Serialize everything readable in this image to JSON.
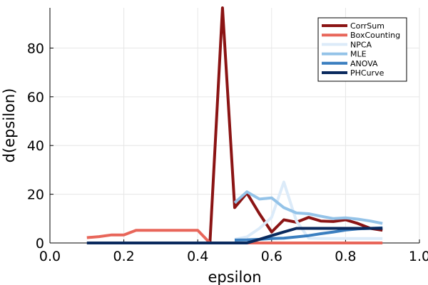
{
  "chart_data": {
    "type": "line",
    "title": "",
    "xlabel": "epsilon",
    "ylabel": "d(epsilon)",
    "xlim": [
      0.0,
      1.0
    ],
    "ylim": [
      0,
      96.5
    ],
    "xticks": [
      0.0,
      0.2,
      0.4,
      0.6,
      0.8,
      1.0
    ],
    "xtick_labels": [
      "0.0",
      "0.2",
      "0.4",
      "0.6",
      "0.8",
      "1.0"
    ],
    "yticks": [
      0,
      20,
      40,
      60,
      80
    ],
    "ytick_labels": [
      "0",
      "20",
      "40",
      "60",
      "80"
    ],
    "grid": true,
    "legend_position": "top-right",
    "series": [
      {
        "name": "CorrSum",
        "color": "#8b1414",
        "x": [
          0.433,
          0.467,
          0.5,
          0.533,
          0.567,
          0.6,
          0.633,
          0.667,
          0.7,
          0.733,
          0.767,
          0.8,
          0.833,
          0.867,
          0.9
        ],
        "y": [
          0,
          96.5,
          14.5,
          20.5,
          12,
          4.5,
          9.5,
          8.5,
          10.5,
          9,
          8.8,
          9.5,
          8,
          6,
          5.2
        ]
      },
      {
        "name": "BoxCounting",
        "color": "#e8665a",
        "x": [
          0.1,
          0.133,
          0.167,
          0.2,
          0.233,
          0.267,
          0.3,
          0.333,
          0.367,
          0.4,
          0.433,
          0.467,
          0.5,
          0.6,
          0.7,
          0.8,
          0.9
        ],
        "y": [
          2.2,
          2.6,
          3.3,
          3.3,
          5.2,
          5.2,
          5.2,
          5.2,
          5.2,
          5.2,
          0,
          0,
          0,
          0,
          0,
          0,
          0
        ]
      },
      {
        "name": "NPCA",
        "color": "#dcebf9",
        "x": [
          0.5,
          0.533,
          0.567,
          0.6,
          0.633,
          0.667,
          0.7,
          0.733,
          0.767,
          0.8,
          0.833,
          0.867,
          0.9
        ],
        "y": [
          1.5,
          2.5,
          6,
          10.5,
          25,
          9,
          2,
          1.8,
          1.8,
          1.8,
          1.8,
          1.8,
          1.8
        ]
      },
      {
        "name": "MLE",
        "color": "#94c3e8",
        "x": [
          0.5,
          0.533,
          0.567,
          0.6,
          0.633,
          0.667,
          0.7,
          0.733,
          0.767,
          0.8,
          0.833,
          0.867,
          0.9
        ],
        "y": [
          16.5,
          21,
          18,
          18.5,
          14.5,
          12.3,
          12,
          11,
          10,
          10.3,
          9.8,
          9,
          8
        ]
      },
      {
        "name": "ANOVA",
        "color": "#3b7fc0",
        "x": [
          0.5,
          0.533,
          0.567,
          0.6,
          0.633,
          0.667,
          0.7,
          0.733,
          0.767,
          0.8,
          0.833,
          0.867,
          0.9
        ],
        "y": [
          1.2,
          1.3,
          1.5,
          1.8,
          2,
          2.5,
          3,
          3.8,
          4.5,
          5.3,
          5.8,
          6,
          6.2
        ]
      },
      {
        "name": "PHCurve",
        "color": "#0a2a5e",
        "x": [
          0.1,
          0.2,
          0.3,
          0.4,
          0.433,
          0.467,
          0.5,
          0.533,
          0.567,
          0.6,
          0.633,
          0.667,
          0.7,
          0.733,
          0.767,
          0.8,
          0.833,
          0.867,
          0.9
        ],
        "y": [
          0,
          0,
          0,
          0,
          0,
          0,
          0,
          0,
          1.5,
          3,
          4.5,
          6,
          6,
          6,
          6,
          6,
          6,
          6,
          6
        ]
      }
    ]
  }
}
